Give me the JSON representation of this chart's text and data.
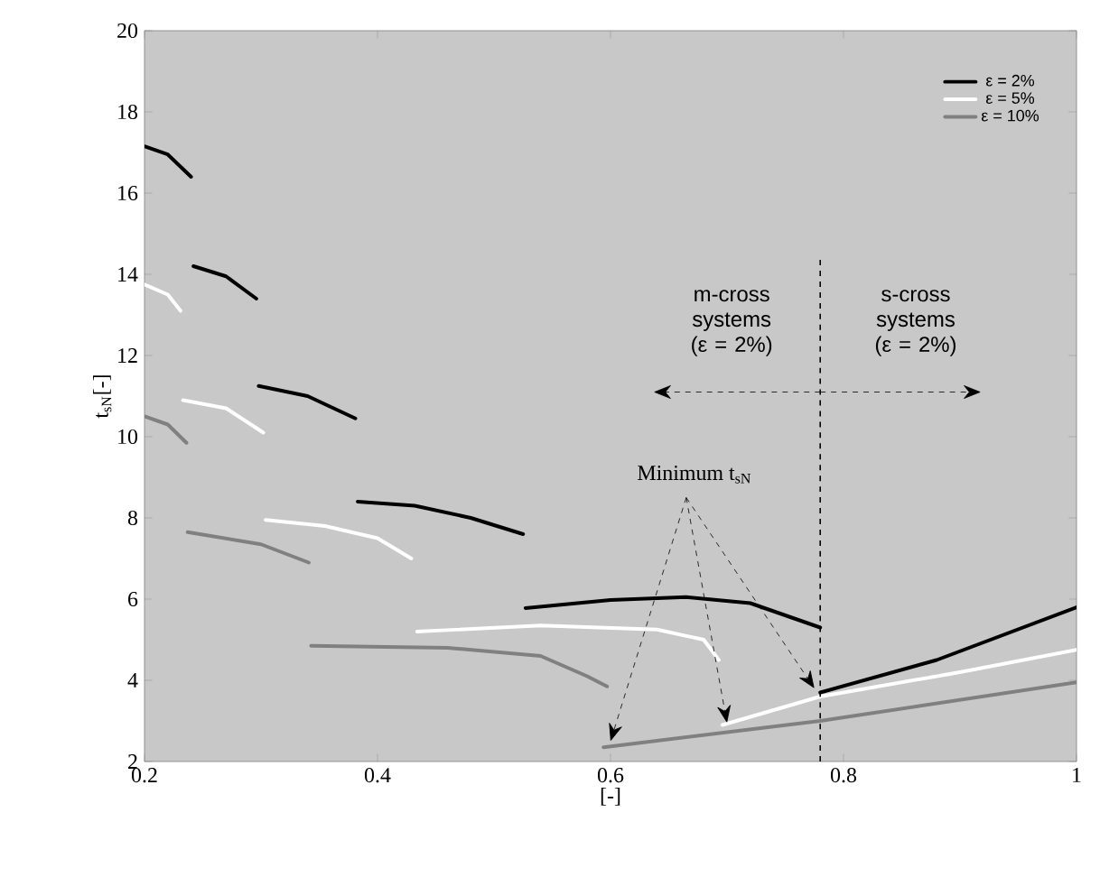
{
  "chart_data": {
    "type": "line",
    "xlabel": "[-]",
    "ylabel": "t$_{sN}$[-]",
    "xlim": [
      0.2,
      1
    ],
    "ylim": [
      2,
      20
    ],
    "xticks": [
      0.2,
      0.4,
      0.6,
      0.8,
      1
    ],
    "yticks": [
      2,
      4,
      6,
      8,
      10,
      12,
      14,
      16,
      18,
      20
    ],
    "grid": false,
    "legend": "top right",
    "line_style": "solid",
    "marker": "none",
    "series": [
      {
        "name": "ε = 2%",
        "color": "#000000",
        "x": [
          0.2,
          0.22,
          0.24,
          null,
          0.242,
          0.27,
          0.296,
          null,
          0.298,
          0.34,
          0.381,
          null,
          0.383,
          0.432,
          0.48,
          0.525,
          null,
          0.527,
          0.6,
          0.665,
          0.72,
          0.78,
          null,
          0.78,
          0.88,
          1.0
        ],
        "values": [
          17.15,
          16.95,
          16.4,
          null,
          14.2,
          13.95,
          13.4,
          null,
          11.25,
          11.0,
          10.45,
          null,
          8.4,
          8.3,
          8.0,
          7.6,
          null,
          5.78,
          5.98,
          6.05,
          5.9,
          5.3,
          null,
          3.7,
          4.5,
          5.8
        ]
      },
      {
        "name": "ε = 5%",
        "color": "#ffffff",
        "x": [
          0.2,
          0.22,
          0.231,
          null,
          0.233,
          0.27,
          0.302,
          null,
          0.304,
          0.355,
          0.4,
          0.429,
          null,
          0.434,
          0.54,
          0.64,
          0.68,
          0.693,
          null,
          0.696,
          0.78,
          0.9,
          1.0
        ],
        "values": [
          13.75,
          13.5,
          13.1,
          null,
          10.9,
          10.7,
          10.1,
          null,
          7.95,
          7.8,
          7.5,
          7.0,
          null,
          5.2,
          5.35,
          5.25,
          5.0,
          4.5,
          null,
          2.9,
          3.6,
          4.2,
          4.75
        ]
      },
      {
        "name": "ε = 10%",
        "color": "#808080",
        "x": [
          0.2,
          0.22,
          0.236,
          null,
          0.237,
          0.3,
          0.341,
          null,
          0.343,
          0.46,
          0.54,
          0.58,
          0.597,
          null,
          0.594,
          0.78,
          1.0
        ],
        "values": [
          10.5,
          10.3,
          9.85,
          null,
          7.65,
          7.35,
          6.9,
          null,
          4.85,
          4.8,
          4.6,
          4.1,
          3.85,
          null,
          2.35,
          3.0,
          3.95
        ]
      }
    ],
    "ref_lines": [
      {
        "axis": "x",
        "value": 0.78,
        "color": "#000000",
        "line_style": "dashed"
      }
    ],
    "annotations": [
      "m-cross systems (ε = 2%)",
      "s-cross systems (ε = 2%)",
      {
        "text": "Minimum t$_{sN}$",
        "x": 0.7,
        "y": 2.95
      }
    ]
  }
}
